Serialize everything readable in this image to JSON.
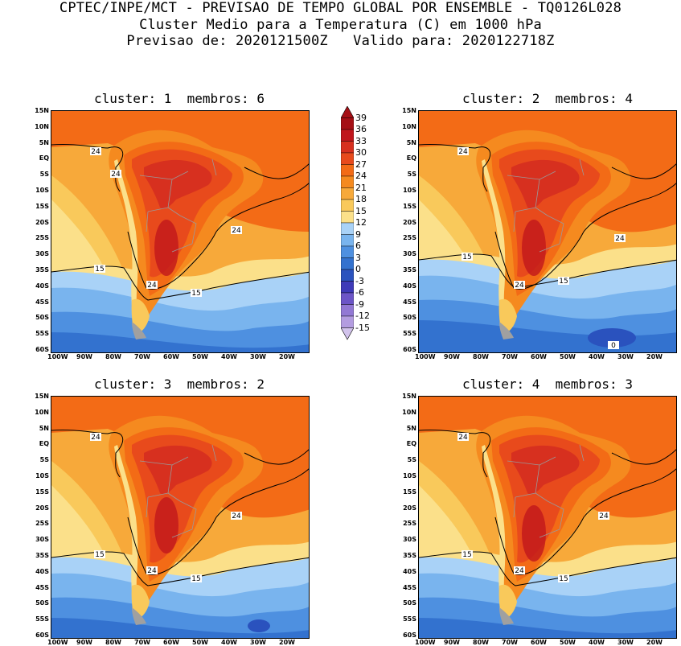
{
  "header": {
    "line1": "CPTEC/INPE/MCT - PREVISAO DE TEMPO GLOBAL POR ENSEMBLE - TQ0126L028",
    "line2": "Cluster Medio para a Temperatura (C) em 1000 hPa",
    "line3": "Previsao de: 2020121500Z   Valido para: 2020122718Z"
  },
  "panels": [
    {
      "title": "cluster: 1  membros: 6"
    },
    {
      "title": "cluster: 2  membros: 4"
    },
    {
      "title": "cluster: 3  membros: 2"
    },
    {
      "title": "cluster: 4  membros: 3"
    }
  ],
  "lat_labels": [
    "15N",
    "10N",
    "5N",
    "EQ",
    "5S",
    "10S",
    "15S",
    "20S",
    "25S",
    "30S",
    "35S",
    "40S",
    "45S",
    "50S",
    "55S",
    "60S"
  ],
  "lon_labels": [
    "100W",
    "90W",
    "80W",
    "70W",
    "60W",
    "50W",
    "40W",
    "30W",
    "20W"
  ],
  "colorbar": {
    "levels": [
      "39",
      "36",
      "33",
      "30",
      "27",
      "24",
      "21",
      "18",
      "15",
      "12",
      "9",
      "6",
      "3",
      "0",
      "-3",
      "-6",
      "-9",
      "-12",
      "-15"
    ],
    "colors": [
      "#a50f15",
      "#c0161c",
      "#d7301f",
      "#e84a1c",
      "#f36b16",
      "#f58a1f",
      "#f7a93a",
      "#f9c95b",
      "#fbe08a",
      "#a9d2f7",
      "#79b4ee",
      "#4e90e0",
      "#3372cf",
      "#2a52be",
      "#3e3ab8",
      "#6c55c7",
      "#9278d4",
      "#b39ce0",
      "#d2c3ec"
    ]
  },
  "contours": {
    "label_24": "24",
    "label_15": "15",
    "label_0": "0"
  }
}
